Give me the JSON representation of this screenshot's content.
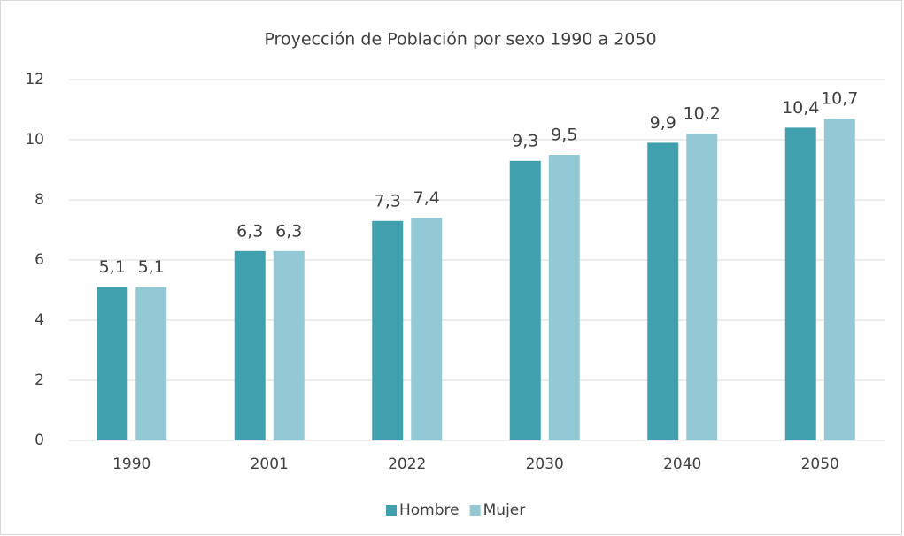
{
  "chart_data": {
    "type": "bar",
    "title": "Proyección de Población por sexo 1990 a 2050",
    "categories": [
      "1990",
      "2001",
      "2022",
      "2030",
      "2040",
      "2050"
    ],
    "series": [
      {
        "name": "Hombre",
        "color": "#40a0ad",
        "values": [
          5.1,
          6.3,
          7.3,
          9.3,
          9.9,
          10.4
        ],
        "value_labels": [
          "5,1",
          "6,3",
          "7,3",
          "9,3",
          "9,9",
          "10,4"
        ]
      },
      {
        "name": "Mujer",
        "color": "#93c9d4",
        "values": [
          5.1,
          6.3,
          7.4,
          9.5,
          10.2,
          10.7
        ],
        "value_labels": [
          "5,1",
          "6,3",
          "7,4",
          "9,5",
          "10,2",
          "10,7"
        ]
      }
    ],
    "ylim": [
      0,
      12
    ],
    "yticks": [
      0,
      2,
      4,
      6,
      8,
      10,
      12
    ],
    "grid": true,
    "legend": "bottom"
  }
}
